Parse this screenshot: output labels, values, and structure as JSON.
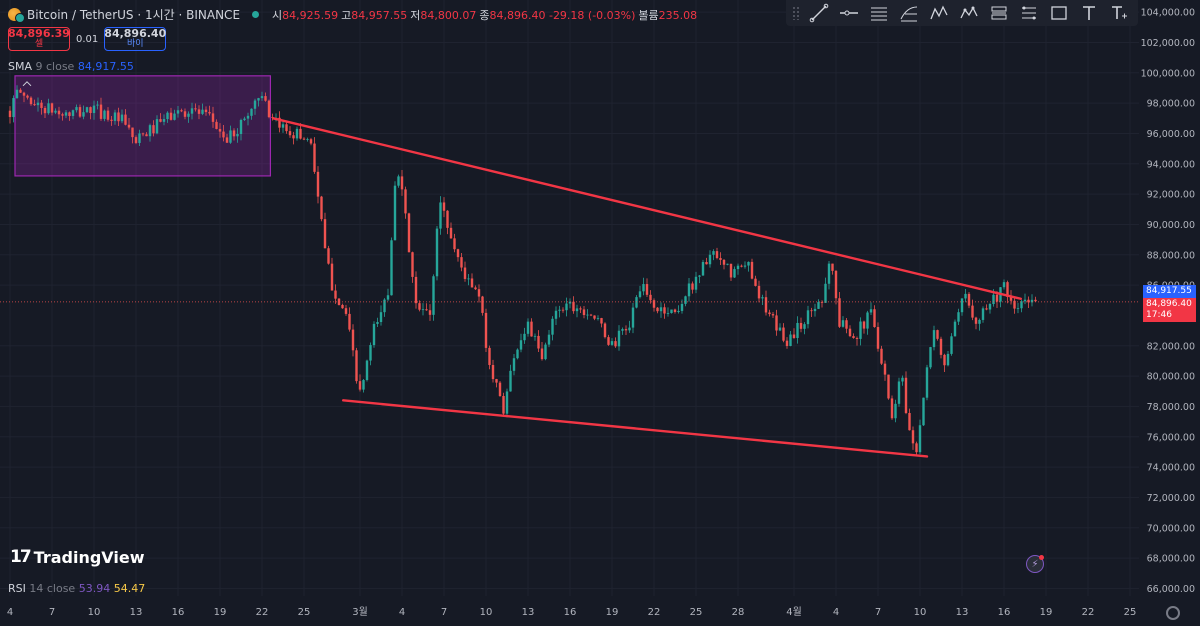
{
  "header": {
    "symbol_title": "Bitcoin / TetherUS · 1시간 · BINANCE",
    "ohlc": [
      {
        "label": "시",
        "value": "84,925.59"
      },
      {
        "label": "고",
        "value": "84,957.55"
      },
      {
        "label": "저",
        "value": "84,800.07"
      },
      {
        "label": "종",
        "value": "84,896.40"
      },
      {
        "label": "",
        "value": "-29.18 (-0.03%)"
      },
      {
        "label": "볼륨",
        "value": "235.08"
      }
    ]
  },
  "trade": {
    "sell_price": "84,896.39",
    "sell_label": "셀",
    "spread": "0.01",
    "buy_price": "84,896.40",
    "buy_label": "바이"
  },
  "indicators": {
    "sma": {
      "name": "SMA",
      "params": "9 close",
      "value": "84,917.55"
    },
    "rsi": {
      "name": "RSI",
      "params": "14 close",
      "value1": "53.94",
      "value2": "54.47"
    }
  },
  "price_labels": {
    "sma": "84,917.55",
    "last": "84,896.40",
    "countdown": "17:46"
  },
  "toolbar": {
    "tools": [
      "trend-line-icon",
      "horizontal-ray-icon",
      "parallel-channel-icon",
      "fib-retracement-icon",
      "xabcd-pattern-icon",
      "elliott-wave-icon",
      "long-position-icon",
      "short-position-icon",
      "rectangle-icon",
      "text-icon",
      "anchored-text-icon"
    ]
  },
  "logo": {
    "text": "TradingView"
  },
  "colors": {
    "background": "#161a25",
    "up": "#26a69a",
    "down": "#ef5350",
    "trendline": "#f23645",
    "rectangle": "#9c27b0",
    "sma": "#2962ff"
  },
  "chart_data": {
    "type": "candlestick",
    "timeframe": "1시간",
    "y_ticks": [
      "104,000.00",
      "102,000.00",
      "100,000.00",
      "98,000.00",
      "96,000.00",
      "94,000.00",
      "92,000.00",
      "90,000.00",
      "88,000.00",
      "86,000.00",
      "82,000.00",
      "80,000.00",
      "78,000.00",
      "76,000.00",
      "74,000.00",
      "72,000.00",
      "70,000.00",
      "68,000.00",
      "66,000.00"
    ],
    "ylim": [
      65500,
      104800
    ],
    "x_ticks": [
      {
        "label": "4",
        "day": 0
      },
      {
        "label": "7",
        "day": 3
      },
      {
        "label": "10",
        "day": 6
      },
      {
        "label": "13",
        "day": 9
      },
      {
        "label": "16",
        "day": 12
      },
      {
        "label": "19",
        "day": 15
      },
      {
        "label": "22",
        "day": 18
      },
      {
        "label": "25",
        "day": 21
      },
      {
        "label": "3월",
        "day": 25
      },
      {
        "label": "4",
        "day": 28
      },
      {
        "label": "7",
        "day": 31
      },
      {
        "label": "10",
        "day": 34
      },
      {
        "label": "13",
        "day": 37
      },
      {
        "label": "16",
        "day": 40
      },
      {
        "label": "19",
        "day": 43
      },
      {
        "label": "22",
        "day": 46
      },
      {
        "label": "25",
        "day": 49
      },
      {
        "label": "28",
        "day": 52
      },
      {
        "label": "4월",
        "day": 56
      },
      {
        "label": "4",
        "day": 59
      },
      {
        "label": "7",
        "day": 62
      },
      {
        "label": "10",
        "day": 65
      },
      {
        "label": "13",
        "day": 68
      },
      {
        "label": "16",
        "day": 71
      },
      {
        "label": "19",
        "day": 74
      },
      {
        "label": "22",
        "day": 77
      },
      {
        "label": "25",
        "day": 80
      }
    ],
    "price_path": [
      [
        0,
        97500
      ],
      [
        0.6,
        98800
      ],
      [
        2,
        97800
      ],
      [
        4,
        97200
      ],
      [
        6,
        97600
      ],
      [
        8,
        96800
      ],
      [
        9,
        95400
      ],
      [
        10,
        96200
      ],
      [
        11.5,
        97200
      ],
      [
        13,
        97600
      ],
      [
        14.5,
        96800
      ],
      [
        15.5,
        95500
      ],
      [
        16.5,
        96600
      ],
      [
        18,
        98800
      ],
      [
        18.5,
        96800
      ],
      [
        20,
        96200
      ],
      [
        21.5,
        95500
      ],
      [
        22.5,
        88200
      ],
      [
        23,
        86000
      ],
      [
        24,
        84000
      ],
      [
        25,
        78700
      ],
      [
        26,
        83000
      ],
      [
        27,
        85500
      ],
      [
        27.6,
        94500
      ],
      [
        28.3,
        90000
      ],
      [
        29,
        84500
      ],
      [
        30,
        84000
      ],
      [
        30.7,
        91800
      ],
      [
        31.7,
        88500
      ],
      [
        32.7,
        86200
      ],
      [
        33.5,
        85200
      ],
      [
        34.3,
        80500
      ],
      [
        35.3,
        77800
      ],
      [
        36,
        81500
      ],
      [
        37,
        83500
      ],
      [
        38,
        81000
      ],
      [
        39,
        84500
      ],
      [
        40,
        84800
      ],
      [
        41.5,
        84200
      ],
      [
        43,
        82000
      ],
      [
        44.3,
        83500
      ],
      [
        45,
        86000
      ],
      [
        46,
        84500
      ],
      [
        47.5,
        84200
      ],
      [
        49,
        86500
      ],
      [
        50,
        88000
      ],
      [
        51.5,
        86800
      ],
      [
        52.8,
        87300
      ],
      [
        54,
        84200
      ],
      [
        55.5,
        82300
      ],
      [
        57,
        84000
      ],
      [
        58,
        85200
      ],
      [
        58.6,
        88000
      ],
      [
        59.2,
        83500
      ],
      [
        60.5,
        82800
      ],
      [
        61.5,
        84200
      ],
      [
        62.5,
        80200
      ],
      [
        63,
        77000
      ],
      [
        63.6,
        80600
      ],
      [
        64.3,
        76000
      ],
      [
        64.8,
        75300
      ],
      [
        65.4,
        79800
      ],
      [
        66,
        82800
      ],
      [
        66.8,
        80800
      ],
      [
        67.5,
        83200
      ],
      [
        68.2,
        85300
      ],
      [
        69,
        83800
      ],
      [
        70,
        84900
      ],
      [
        71,
        85800
      ],
      [
        71.6,
        84300
      ],
      [
        72.3,
        84800
      ],
      [
        73.3,
        84900
      ]
    ],
    "trendlines": [
      {
        "name": "upper-resistance",
        "from": [
          18.8,
          97000
        ],
        "to": [
          72.2,
          85100
        ]
      },
      {
        "name": "lower-support",
        "from": [
          23.8,
          78400
        ],
        "to": [
          65.5,
          74700
        ]
      }
    ],
    "range_box": {
      "x0": 0,
      "x1": 18.6,
      "y0": 93200,
      "y1": 99800
    },
    "current_price": 84896.4
  }
}
